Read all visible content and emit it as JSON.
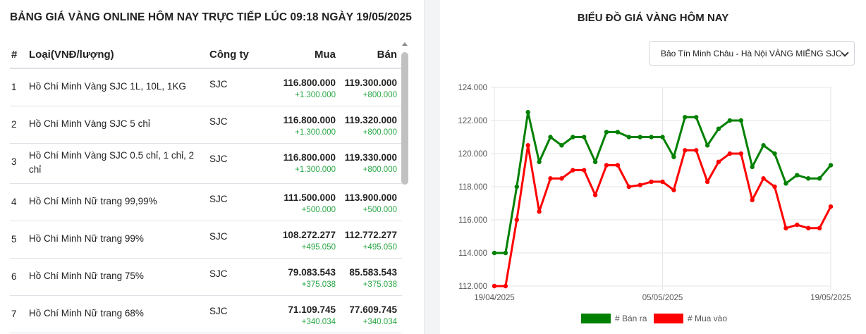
{
  "table": {
    "title": "BẢNG GIÁ VÀNG ONLINE HÔM NAY TRỰC TIẾP LÚC 09:18 NGÀY 19/05/2025",
    "headers": {
      "idx": "#",
      "type": "Loại(VNĐ/lượng)",
      "company": "Công ty",
      "buy": "Mua",
      "sell": "Bán"
    },
    "rows": [
      {
        "idx": "1",
        "type": "Hồ Chí Minh Vàng SJC 1L, 10L, 1KG",
        "company": "SJC",
        "buy": "116.800.000",
        "buy_change": "+1.300.000",
        "sell": "119.300.000",
        "sell_change": "+800.000"
      },
      {
        "idx": "2",
        "type": "Hồ Chí Minh Vàng SJC 5 chỉ",
        "company": "SJC",
        "buy": "116.800.000",
        "buy_change": "+1.300.000",
        "sell": "119.320.000",
        "sell_change": "+800.000"
      },
      {
        "idx": "3",
        "type": "Hồ Chí Minh Vàng SJC 0.5 chỉ, 1 chỉ, 2 chỉ",
        "company": "SJC",
        "buy": "116.800.000",
        "buy_change": "+1.300.000",
        "sell": "119.330.000",
        "sell_change": "+800.000"
      },
      {
        "idx": "4",
        "type": "Hồ Chí Minh Nữ trang 99,99%",
        "company": "SJC",
        "buy": "111.500.000",
        "buy_change": "+500.000",
        "sell": "113.900.000",
        "sell_change": "+500.000"
      },
      {
        "idx": "5",
        "type": "Hồ Chí Minh Nữ trang 99%",
        "company": "SJC",
        "buy": "108.272.277",
        "buy_change": "+495.050",
        "sell": "112.772.277",
        "sell_change": "+495.050"
      },
      {
        "idx": "6",
        "type": "Hồ Chí Minh Nữ trang 75%",
        "company": "SJC",
        "buy": "79.083.543",
        "buy_change": "+375.038",
        "sell": "85.583.543",
        "sell_change": "+375.038"
      },
      {
        "idx": "7",
        "type": "Hồ Chí Minh Nữ trang 68%",
        "company": "SJC",
        "buy": "71.109.745",
        "buy_change": "+340.034",
        "sell": "77.609.745",
        "sell_change": "+340.034"
      }
    ]
  },
  "chart_panel": {
    "title": "BIỂU ĐỒ GIÁ VÀNG HÔM NAY",
    "selected_option": "Bảo Tín Minh Châu - Hà Nội VÀNG MIẾNG SJC"
  },
  "chart_data": {
    "type": "line",
    "x_labels": [
      "19/04/2025",
      "05/05/2025",
      "19/05/2025"
    ],
    "y_ticks": [
      "124.000",
      "122.000",
      "120.000",
      "118.000",
      "116.000",
      "114.000",
      "112.000"
    ],
    "ylim": [
      112000,
      124000
    ],
    "grid": true,
    "legend_position": "bottom",
    "series": [
      {
        "name": "# Bán ra",
        "color": "#008000",
        "values": [
          114000,
          114000,
          118000,
          122500,
          119500,
          121000,
          120500,
          121000,
          121000,
          119500,
          121300,
          121300,
          121000,
          121000,
          121000,
          121000,
          119800,
          122200,
          122200,
          120500,
          121500,
          122000,
          122000,
          119200,
          120500,
          120000,
          118200,
          118700,
          118500,
          118500,
          119300
        ]
      },
      {
        "name": "# Mua vào",
        "color": "#ff0000",
        "values": [
          112000,
          112000,
          116000,
          120500,
          116500,
          118500,
          118500,
          119000,
          119000,
          117500,
          119300,
          119300,
          118000,
          118100,
          118300,
          118300,
          117800,
          120200,
          120200,
          118300,
          119500,
          120000,
          120000,
          117200,
          118500,
          118000,
          115500,
          115700,
          115500,
          115500,
          116800
        ]
      }
    ]
  }
}
